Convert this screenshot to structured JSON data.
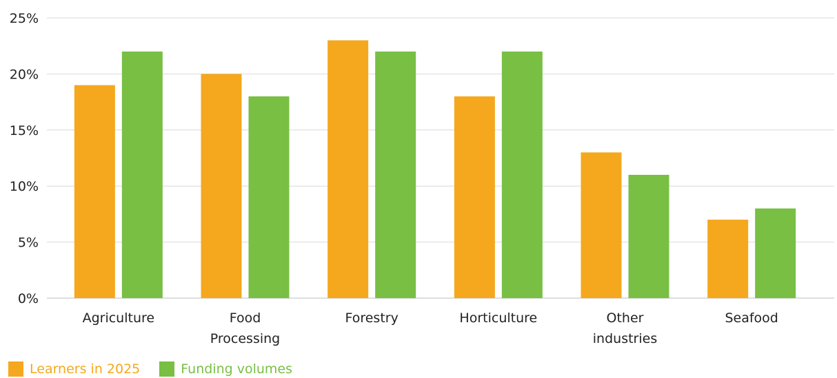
{
  "chart_data": {
    "type": "bar",
    "categories": [
      [
        "Agriculture"
      ],
      [
        "Food",
        "Processing"
      ],
      [
        "Forestry"
      ],
      [
        "Horticulture"
      ],
      [
        "Other",
        "industries"
      ],
      [
        "Seafood"
      ]
    ],
    "series": [
      {
        "name": "Learners in 2025",
        "color": "#f5a81d",
        "values": [
          19,
          20,
          23,
          18,
          13,
          7
        ]
      },
      {
        "name": "Funding volumes",
        "color": "#78bf44",
        "values": [
          22,
          18,
          22,
          22,
          11,
          8
        ]
      }
    ],
    "yticks": [
      "0%",
      "5%",
      "10%",
      "15%",
      "20%",
      "25%"
    ],
    "ylim": [
      0,
      25
    ],
    "grid": true,
    "legend_position": "bottom-left",
    "title": "",
    "xlabel": "",
    "ylabel": ""
  }
}
